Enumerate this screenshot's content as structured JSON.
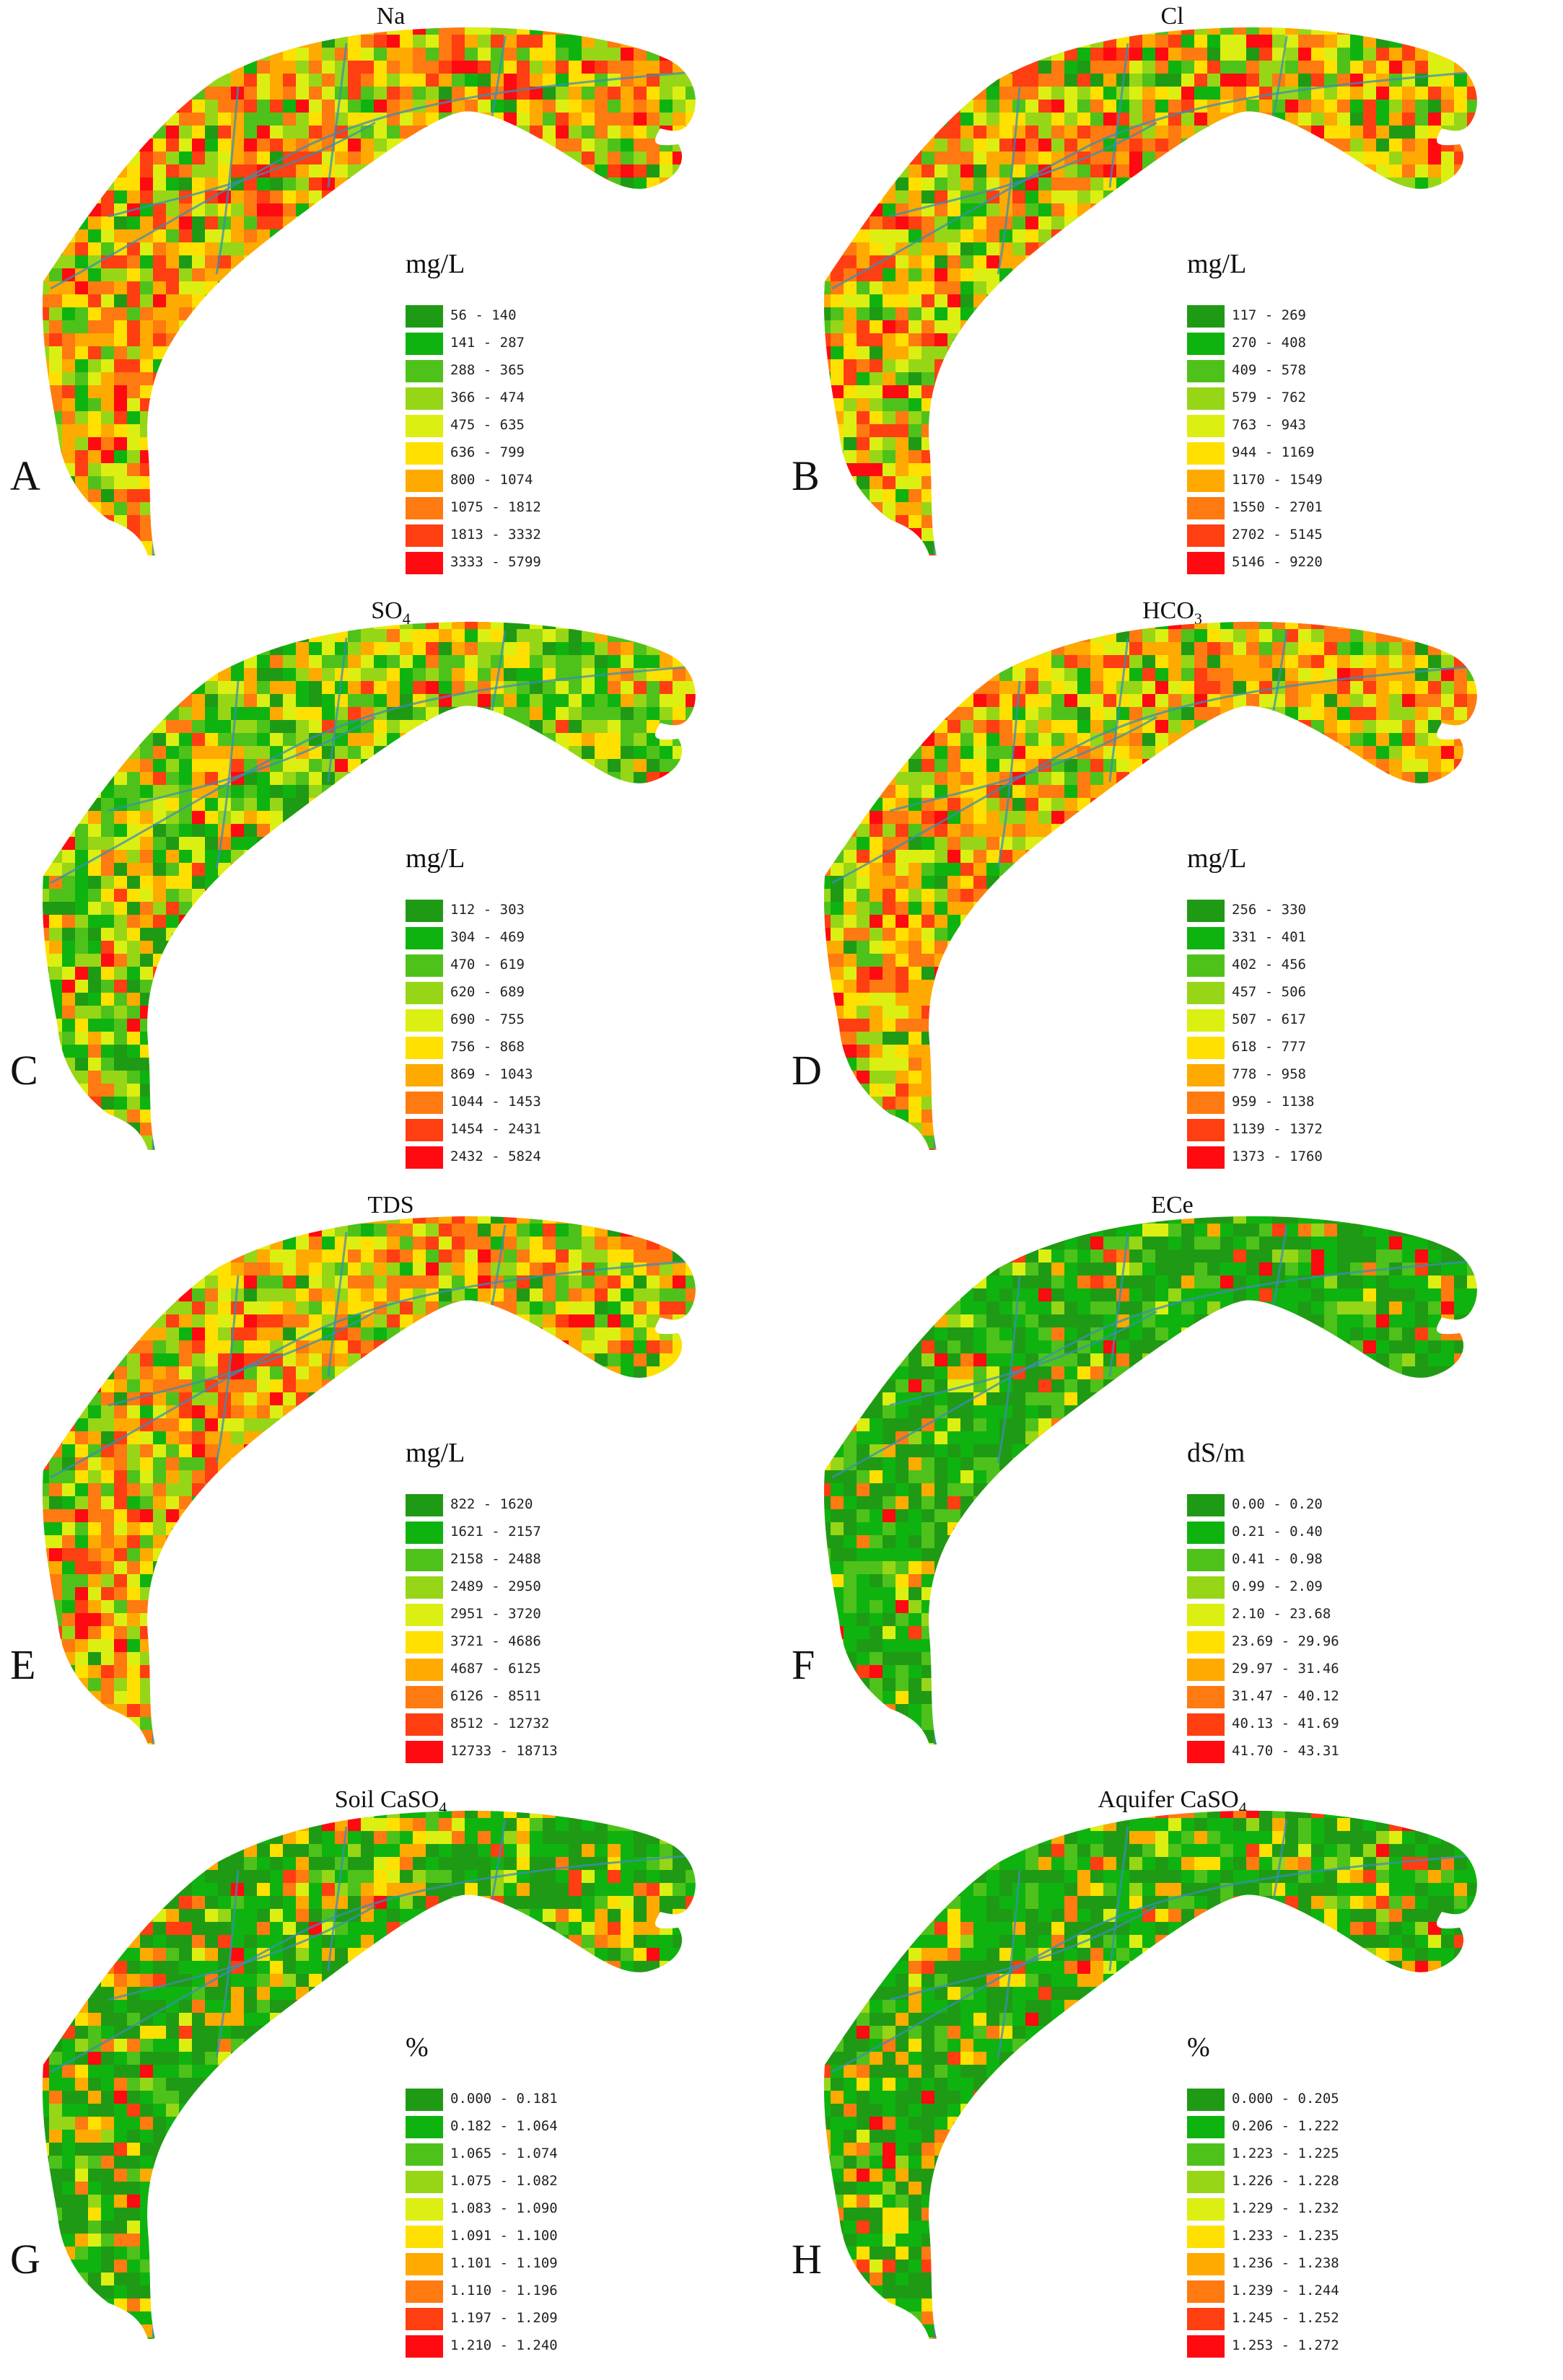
{
  "palette": [
    "#1f9a14",
    "#0fb30f",
    "#4ec21a",
    "#96d617",
    "#dcef12",
    "#ffe000",
    "#ffaa00",
    "#ff7a10",
    "#ff3e12",
    "#ff0a10"
  ],
  "panels": [
    {
      "letter": "A",
      "title": "Na",
      "title_sub": "",
      "unit": "mg/L",
      "tint": "mixed",
      "legend": [
        "56 - 140",
        "141 - 287",
        "288 - 365",
        "366 - 474",
        "475 - 635",
        "636 - 799",
        "800 - 1074",
        "1075 - 1812",
        "1813 - 3332",
        "3333 - 5799"
      ]
    },
    {
      "letter": "B",
      "title": "Cl",
      "title_sub": "",
      "unit": "mg/L",
      "tint": "mixed",
      "legend": [
        "117 - 269",
        "270 - 408",
        "409 - 578",
        "579 - 762",
        "763 - 943",
        "944 - 1169",
        "1170 - 1549",
        "1550 - 2701",
        "2702 - 5145",
        "5146 - 9220"
      ]
    },
    {
      "letter": "C",
      "title": "SO",
      "title_sub": "4",
      "unit": "mg/L",
      "tint": "green",
      "legend": [
        "112 - 303",
        "304 - 469",
        "470 - 619",
        "620 - 689",
        "690 - 755",
        "756 - 868",
        "869 - 1043",
        "1044 - 1453",
        "1454 - 2431",
        "2432 - 5824"
      ]
    },
    {
      "letter": "D",
      "title": "HCO",
      "title_sub": "3",
      "unit": "mg/L",
      "tint": "orange",
      "legend": [
        "256 - 330",
        "331 - 401",
        "402 - 456",
        "457 - 506",
        "507 - 617",
        "618 - 777",
        "778 - 958",
        "959 - 1138",
        "1139 - 1372",
        "1373 - 1760"
      ]
    },
    {
      "letter": "E",
      "title": "TDS",
      "title_sub": "",
      "unit": "mg/L",
      "tint": "mixed",
      "legend": [
        "822 - 1620",
        "1621 - 2157",
        "2158 - 2488",
        "2489 - 2950",
        "2951 - 3720",
        "3721 - 4686",
        "4687 - 6125",
        "6126 - 8511",
        "8512 - 12732",
        "12733 - 18713"
      ]
    },
    {
      "letter": "F",
      "title": "ECe",
      "title_sub": "",
      "unit": "dS/m",
      "tint": "deepgreen",
      "legend": [
        "0.00 - 0.20",
        "0.21 - 0.40",
        "0.41 - 0.98",
        "0.99 - 2.09",
        "2.10 - 23.68",
        "23.69 - 29.96",
        "29.97 - 31.46",
        "31.47 - 40.12",
        "40.13 - 41.69",
        "41.70 - 43.31"
      ]
    },
    {
      "letter": "G",
      "title": "Soil CaSO",
      "title_sub": "4",
      "unit": "%",
      "tint": "greenspots",
      "legend": [
        "0.000 - 0.181",
        "0.182 - 1.064",
        "1.065 - 1.074",
        "1.075 - 1.082",
        "1.083 - 1.090",
        "1.091 - 1.100",
        "1.101 - 1.109",
        "1.110 - 1.196",
        "1.197 - 1.209",
        "1.210 - 1.240"
      ]
    },
    {
      "letter": "H",
      "title": "Aquifer CaSO",
      "title_sub": "4",
      "unit": "%",
      "tint": "greenspots",
      "legend": [
        "0.000 - 0.205",
        "0.206 - 1.222",
        "1.223 - 1.225",
        "1.226 - 1.228",
        "1.229 - 1.232",
        "1.233 - 1.235",
        "1.236 - 1.238",
        "1.239 - 1.244",
        "1.245 - 1.252",
        "1.253 - 1.272"
      ]
    }
  ]
}
